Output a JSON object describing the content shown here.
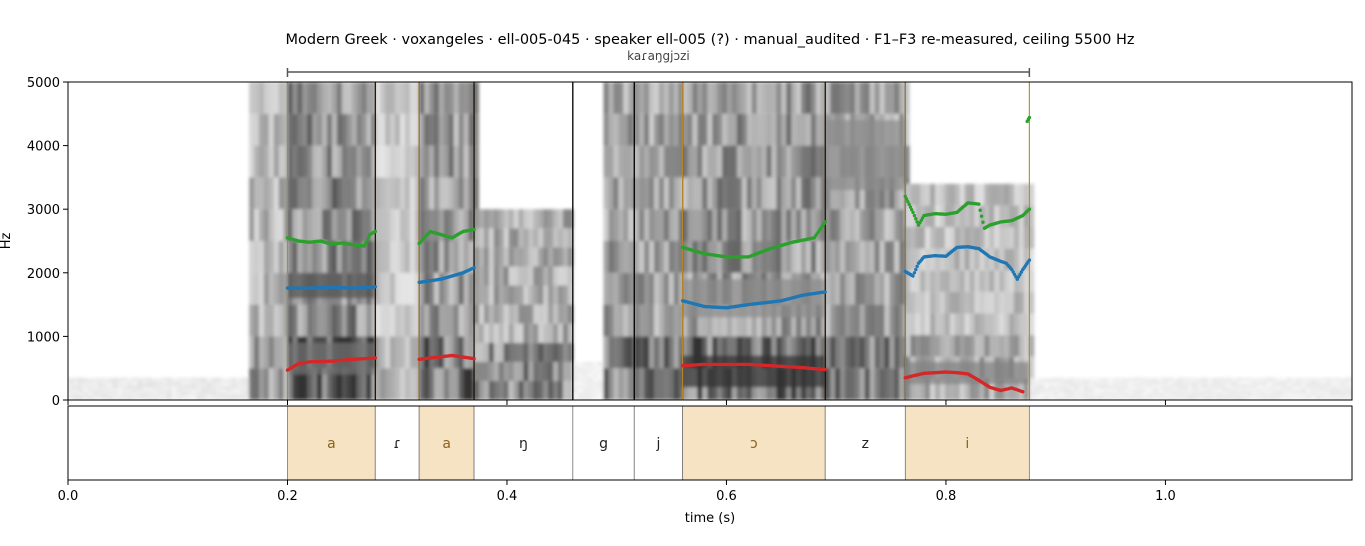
{
  "title": "Modern Greek · voxangeles · ell-005-045 · speaker ell-005 (?) · manual_audited · F1–F3 re-measured, ceiling 5500 Hz",
  "word_label": "kaɾaŋgjɔzi",
  "chart_data": {
    "type": "spectrogram",
    "xlabel": "time (s)",
    "ylabel": "Hz",
    "xlim": [
      0.0,
      1.17
    ],
    "ylim": [
      0,
      5000
    ],
    "x_ticks": [
      "0.0",
      "0.2",
      "0.4",
      "0.6",
      "0.8",
      "1.0"
    ],
    "y_ticks": [
      "0",
      "1000",
      "2000",
      "3000",
      "4000",
      "5000"
    ],
    "word_span": [
      0.2,
      0.876
    ],
    "segments": [
      {
        "label": "a",
        "start": 0.2,
        "end": 0.28,
        "vowel": true
      },
      {
        "label": "ɾ",
        "start": 0.28,
        "end": 0.32,
        "vowel": false
      },
      {
        "label": "a",
        "start": 0.32,
        "end": 0.37,
        "vowel": true
      },
      {
        "label": "ŋ",
        "start": 0.37,
        "end": 0.46,
        "vowel": false
      },
      {
        "label": "g",
        "start": 0.46,
        "end": 0.516,
        "vowel": false
      },
      {
        "label": "j",
        "start": 0.516,
        "end": 0.56,
        "vowel": false
      },
      {
        "label": "ɔ",
        "start": 0.56,
        "end": 0.69,
        "vowel": true
      },
      {
        "label": "z",
        "start": 0.69,
        "end": 0.763,
        "vowel": false
      },
      {
        "label": "i",
        "start": 0.763,
        "end": 0.876,
        "vowel": true
      }
    ],
    "formants": [
      {
        "name": "F1",
        "color": "#d62728",
        "tracks": [
          [
            [
              0.2,
              470
            ],
            [
              0.21,
              570
            ],
            [
              0.22,
              600
            ],
            [
              0.24,
              610
            ],
            [
              0.26,
              640
            ],
            [
              0.28,
              660
            ]
          ],
          [
            [
              0.32,
              640
            ],
            [
              0.33,
              660
            ],
            [
              0.35,
              700
            ],
            [
              0.37,
              650
            ]
          ],
          [
            [
              0.56,
              540
            ],
            [
              0.58,
              560
            ],
            [
              0.62,
              560
            ],
            [
              0.66,
              520
            ],
            [
              0.69,
              480
            ]
          ],
          [
            [
              0.763,
              350
            ],
            [
              0.78,
              420
            ],
            [
              0.8,
              440
            ],
            [
              0.81,
              430
            ],
            [
              0.82,
              410
            ],
            [
              0.83,
              310
            ],
            [
              0.84,
              200
            ],
            [
              0.85,
              150
            ],
            [
              0.86,
              190
            ],
            [
              0.87,
              130
            ]
          ]
        ]
      },
      {
        "name": "F2",
        "color": "#1f77b4",
        "tracks": [
          [
            [
              0.2,
              1760
            ],
            [
              0.22,
              1760
            ],
            [
              0.24,
              1770
            ],
            [
              0.26,
              1760
            ],
            [
              0.28,
              1780
            ]
          ],
          [
            [
              0.32,
              1850
            ],
            [
              0.34,
              1900
            ],
            [
              0.36,
              2000
            ],
            [
              0.37,
              2080
            ]
          ],
          [
            [
              0.56,
              1560
            ],
            [
              0.58,
              1470
            ],
            [
              0.6,
              1450
            ],
            [
              0.62,
              1500
            ],
            [
              0.65,
              1560
            ],
            [
              0.67,
              1650
            ],
            [
              0.69,
              1700
            ]
          ],
          [
            [
              0.763,
              2020
            ],
            [
              0.77,
              1950
            ],
            [
              0.775,
              2150
            ],
            [
              0.78,
              2250
            ],
            [
              0.79,
              2270
            ],
            [
              0.8,
              2260
            ],
            [
              0.81,
              2400
            ],
            [
              0.82,
              2410
            ],
            [
              0.83,
              2380
            ],
            [
              0.84,
              2250
            ],
            [
              0.85,
              2180
            ],
            [
              0.855,
              2150
            ],
            [
              0.86,
              2050
            ],
            [
              0.865,
              1900
            ],
            [
              0.87,
              2050
            ],
            [
              0.876,
              2200
            ]
          ]
        ]
      },
      {
        "name": "F3",
        "color": "#2ca02c",
        "tracks": [
          [
            [
              0.2,
              2550
            ],
            [
              0.21,
              2500
            ],
            [
              0.22,
              2480
            ],
            [
              0.23,
              2500
            ],
            [
              0.24,
              2450
            ],
            [
              0.25,
              2470
            ],
            [
              0.26,
              2440
            ],
            [
              0.27,
              2420
            ],
            [
              0.275,
              2600
            ],
            [
              0.28,
              2650
            ]
          ],
          [
            [
              0.32,
              2460
            ],
            [
              0.33,
              2650
            ],
            [
              0.34,
              2600
            ],
            [
              0.35,
              2550
            ],
            [
              0.36,
              2650
            ],
            [
              0.37,
              2680
            ]
          ],
          [
            [
              0.56,
              2400
            ],
            [
              0.58,
              2300
            ],
            [
              0.6,
              2250
            ],
            [
              0.62,
              2250
            ],
            [
              0.64,
              2380
            ],
            [
              0.66,
              2480
            ],
            [
              0.68,
              2550
            ],
            [
              0.69,
              2800
            ]
          ],
          [
            [
              0.763,
              3200
            ],
            [
              0.77,
              2950
            ],
            [
              0.775,
              2750
            ],
            [
              0.78,
              2900
            ],
            [
              0.79,
              2930
            ],
            [
              0.8,
              2920
            ],
            [
              0.81,
              2950
            ],
            [
              0.82,
              3100
            ],
            [
              0.83,
              3080
            ],
            [
              0.835,
              2700
            ],
            [
              0.84,
              2750
            ],
            [
              0.85,
              2800
            ],
            [
              0.86,
              2820
            ],
            [
              0.87,
              2900
            ],
            [
              0.876,
              3000
            ]
          ],
          [
            [
              0.874,
              4380
            ],
            [
              0.876,
              4440
            ]
          ]
        ]
      }
    ]
  }
}
